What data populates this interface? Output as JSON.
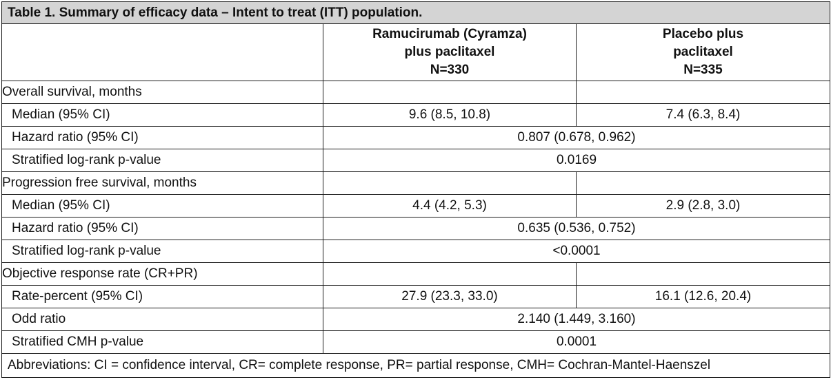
{
  "title": "Table 1. Summary of efficacy data – Intent to treat (ITT) population.",
  "columns": [
    {
      "line1": "Ramucirumab (Cyramza)",
      "line2": "plus paclitaxel",
      "line3": "N=330"
    },
    {
      "line1": "Placebo plus",
      "line2": "paclitaxel",
      "line3": "N=335"
    }
  ],
  "rows": [
    {
      "label": "Overall survival, months",
      "values": [
        "",
        ""
      ]
    },
    {
      "label": "Median (95% CI)",
      "values": [
        "9.6 (8.5, 10.8)",
        "7.4 (6.3, 8.4)"
      ]
    },
    {
      "label": "Hazard ratio (95% CI)",
      "merged": "0.807 (0.678, 0.962)"
    },
    {
      "label": "Stratified log-rank p-value",
      "merged": "0.0169"
    },
    {
      "label": "Progression free survival, months",
      "values": [
        "",
        ""
      ]
    },
    {
      "label": "Median (95% CI)",
      "values": [
        "4.4 (4.2, 5.3)",
        "2.9 (2.8, 3.0)"
      ]
    },
    {
      "label": "Hazard ratio (95% CI)",
      "merged": "0.635 (0.536, 0.752)"
    },
    {
      "label": "Stratified log-rank p-value",
      "merged": "<0.0001"
    },
    {
      "label": "Objective response rate (CR+PR)",
      "values": [
        "",
        ""
      ]
    },
    {
      "label": "Rate-percent (95% CI)",
      "values": [
        "27.9 (23.3, 33.0)",
        "16.1 (12.6, 20.4)"
      ]
    },
    {
      "label": "Odd ratio",
      "merged": "2.140 (1.449, 3.160)"
    },
    {
      "label": "Stratified CMH p-value",
      "merged": "0.0001"
    }
  ],
  "footer": "Abbreviations: CI = confidence interval, CR= complete response, PR= partial response, CMH= Cochran-Mantel-Haenszel"
}
